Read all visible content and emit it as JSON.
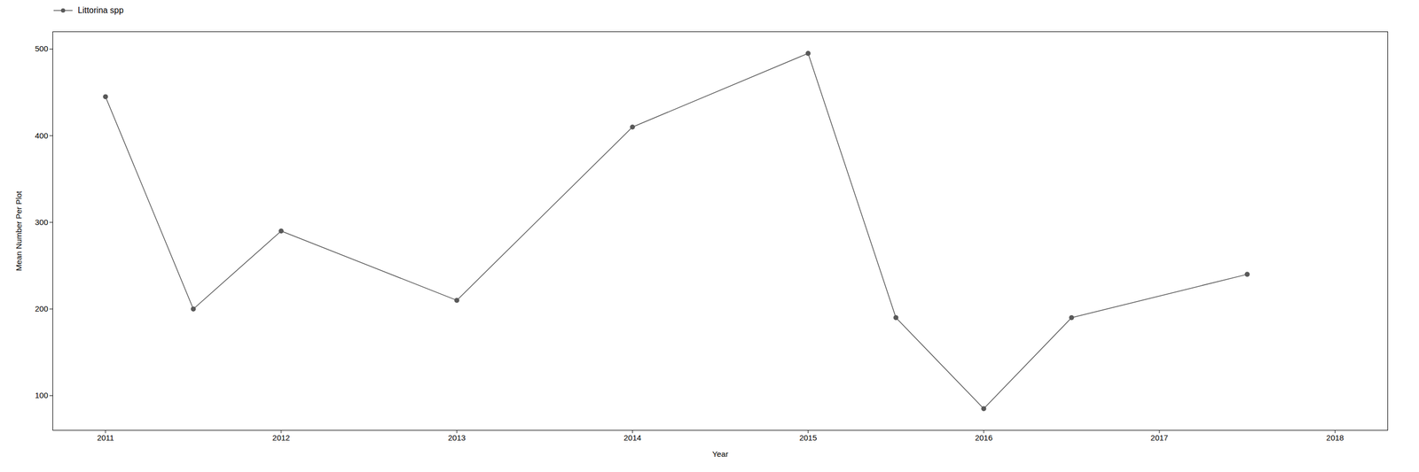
{
  "chart_data": {
    "type": "line",
    "x": [
      2011.0,
      2011.5,
      2012.0,
      2013.0,
      2014.0,
      2015.0,
      2015.5,
      2016.0,
      2016.5,
      2017.5
    ],
    "series": [
      {
        "name": "Littorina spp",
        "color": "#595959",
        "marker": "circle",
        "values": [
          445,
          200,
          290,
          210,
          410,
          495,
          190,
          85,
          190,
          240
        ]
      }
    ],
    "xlabel": "Year",
    "ylabel": "Mean Number Per Plot",
    "xlim": [
      2010.7,
      2018.3
    ],
    "ylim": [
      60,
      520
    ],
    "xticks": [
      2011,
      2012,
      2013,
      2014,
      2015,
      2016,
      2017,
      2018
    ],
    "yticks": [
      100,
      200,
      300,
      400,
      500
    ],
    "grid": false,
    "legend": "upper left"
  }
}
